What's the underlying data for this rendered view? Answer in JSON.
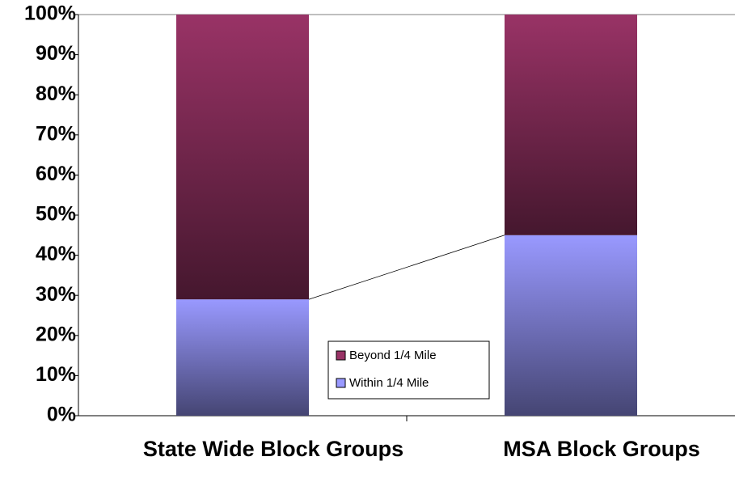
{
  "chart_data": {
    "type": "stacked-bar",
    "categories": [
      "State Wide Block Groups",
      "MSA Block Groups"
    ],
    "series": [
      {
        "name": "Within 1/4 Mile",
        "color": "#9999ff",
        "values": [
          29,
          45
        ]
      },
      {
        "name": "Beyond 1/4 Mile",
        "color": "#993366",
        "values": [
          71,
          55
        ]
      }
    ],
    "ylim": [
      0,
      100
    ],
    "yticks": [
      {
        "value": 0,
        "label": "0%"
      },
      {
        "value": 10,
        "label": "10%"
      },
      {
        "value": 20,
        "label": "20%"
      },
      {
        "value": 30,
        "label": "30%"
      },
      {
        "value": 40,
        "label": "40%"
      },
      {
        "value": 50,
        "label": "50%"
      },
      {
        "value": 60,
        "label": "60%"
      },
      {
        "value": 70,
        "label": "70%"
      },
      {
        "value": 80,
        "label": "80%"
      },
      {
        "value": 90,
        "label": "90%"
      },
      {
        "value": 100,
        "label": "100%"
      }
    ],
    "series_lines": true,
    "legend": "center"
  }
}
